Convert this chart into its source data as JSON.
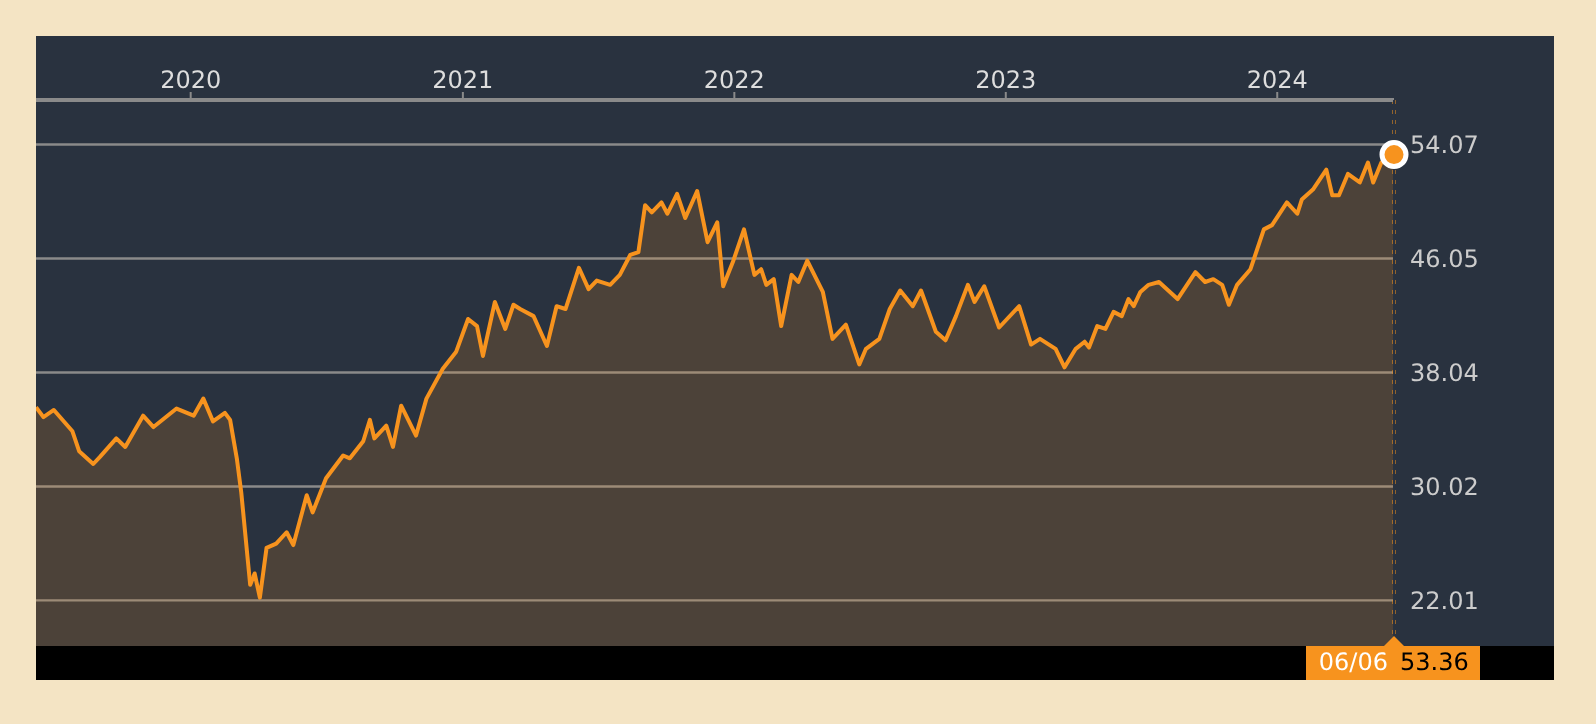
{
  "chart_data": {
    "type": "area",
    "x": [
      "2019-06-07",
      "2019-06-17",
      "2019-07-01",
      "2019-07-26",
      "2019-08-04",
      "2019-08-23",
      "2019-09-01",
      "2019-09-23",
      "2019-10-05",
      "2019-10-29",
      "2019-11-12",
      "2019-12-13",
      "2020-01-05",
      "2020-01-18",
      "2020-01-31",
      "2020-02-16",
      "2020-02-23",
      "2020-03-03",
      "2020-03-09",
      "2020-03-21",
      "2020-03-27",
      "2020-04-03",
      "2020-04-12",
      "2020-04-25",
      "2020-05-09",
      "2020-05-18",
      "2020-06-05",
      "2020-06-13",
      "2020-07-01",
      "2020-07-24",
      "2020-08-02",
      "2020-08-20",
      "2020-08-29",
      "2020-09-04",
      "2020-09-20",
      "2020-09-29",
      "2020-10-10",
      "2020-10-30",
      "2020-11-13",
      "2020-12-05",
      "2020-12-23",
      "2021-01-08",
      "2021-01-20",
      "2021-01-28",
      "2021-02-13",
      "2021-02-27",
      "2021-03-10",
      "2021-03-19",
      "2021-04-06",
      "2021-04-24",
      "2021-05-07",
      "2021-05-19",
      "2021-06-06",
      "2021-06-19",
      "2021-06-30",
      "2021-07-18",
      "2021-07-31",
      "2021-08-14",
      "2021-08-25",
      "2021-09-03",
      "2021-09-12",
      "2021-09-25",
      "2021-10-03",
      "2021-10-16",
      "2021-10-27",
      "2021-11-12",
      "2021-11-26",
      "2021-12-09",
      "2021-12-17",
      "2021-12-30",
      "2022-01-14",
      "2022-01-28",
      "2022-02-06",
      "2022-02-13",
      "2022-02-23",
      "2022-03-05",
      "2022-03-19",
      "2022-03-28",
      "2022-04-09",
      "2022-04-30",
      "2022-05-13",
      "2022-05-31",
      "2022-06-18",
      "2022-06-27",
      "2022-07-15",
      "2022-07-29",
      "2022-08-12",
      "2022-08-29",
      "2022-09-09",
      "2022-09-29",
      "2022-10-12",
      "2022-10-26",
      "2022-11-11",
      "2022-11-20",
      "2022-12-03",
      "2022-12-23",
      "2023-01-19",
      "2023-02-04",
      "2023-02-16",
      "2023-03-09",
      "2023-03-21",
      "2023-04-05",
      "2023-04-17",
      "2023-04-23",
      "2023-05-04",
      "2023-05-15",
      "2023-05-26",
      "2023-06-06",
      "2023-06-15",
      "2023-06-22",
      "2023-07-01",
      "2023-07-12",
      "2023-07-26",
      "2023-08-20",
      "2023-09-13",
      "2023-09-26",
      "2023-10-07",
      "2023-10-19",
      "2023-10-28",
      "2023-11-08",
      "2023-11-26",
      "2023-12-14",
      "2023-12-25",
      "2024-01-14",
      "2024-01-28",
      "2024-02-03",
      "2024-02-18",
      "2024-03-07",
      "2024-03-15",
      "2024-03-24",
      "2024-04-05",
      "2024-04-21",
      "2024-05-02",
      "2024-05-09",
      "2024-05-20",
      "2024-06-06"
    ],
    "series": [
      {
        "color": "#f7931e",
        "values": [
          35.6,
          34.9,
          35.4,
          33.9,
          32.5,
          31.6,
          32.1,
          33.4,
          32.8,
          35.0,
          34.2,
          35.5,
          35.0,
          36.2,
          34.6,
          35.2,
          34.7,
          32.0,
          29.6,
          23.1,
          23.9,
          22.2,
          25.7,
          26.0,
          26.8,
          25.9,
          29.4,
          28.2,
          30.6,
          32.2,
          32.0,
          33.2,
          34.7,
          33.4,
          34.3,
          32.8,
          35.7,
          33.6,
          36.2,
          38.3,
          39.5,
          41.8,
          41.3,
          39.2,
          43.0,
          41.1,
          42.8,
          42.5,
          42.0,
          39.9,
          42.7,
          42.5,
          45.4,
          43.9,
          44.5,
          44.2,
          44.9,
          46.3,
          46.5,
          49.8,
          49.3,
          50.0,
          49.2,
          50.6,
          48.9,
          50.8,
          47.2,
          48.6,
          44.1,
          45.8,
          48.1,
          44.9,
          45.3,
          44.2,
          44.6,
          41.3,
          44.9,
          44.4,
          45.9,
          43.7,
          40.4,
          41.4,
          38.6,
          39.7,
          40.4,
          42.5,
          43.8,
          42.7,
          43.8,
          40.9,
          40.3,
          42.0,
          44.2,
          43.0,
          44.1,
          41.2,
          42.7,
          40.0,
          40.4,
          39.7,
          38.4,
          39.7,
          40.2,
          39.8,
          41.3,
          41.1,
          42.3,
          42.0,
          43.2,
          42.7,
          43.7,
          44.2,
          44.4,
          43.2,
          45.1,
          44.4,
          44.6,
          44.2,
          42.8,
          44.2,
          45.3,
          48.1,
          48.4,
          50.0,
          49.2,
          50.2,
          50.9,
          52.3,
          50.5,
          50.5,
          52.0,
          51.4,
          52.8,
          51.4,
          52.8,
          53.36
        ]
      }
    ],
    "xlim": [
      "2019-06-07",
      "2024-06-06"
    ],
    "xticks": [
      "2020",
      "2021",
      "2022",
      "2023",
      "2024"
    ],
    "ylim": [
      18.8,
      57.2
    ],
    "yticks": [
      22.01,
      30.02,
      38.04,
      46.05,
      54.07
    ],
    "grid": "y",
    "ref_lines": [
      {
        "axis": "x",
        "value": "2024-06-06",
        "color": "#f7931e",
        "line_style": "dotted"
      }
    ],
    "annotations": [
      "06/06",
      "53.36"
    ]
  }
}
